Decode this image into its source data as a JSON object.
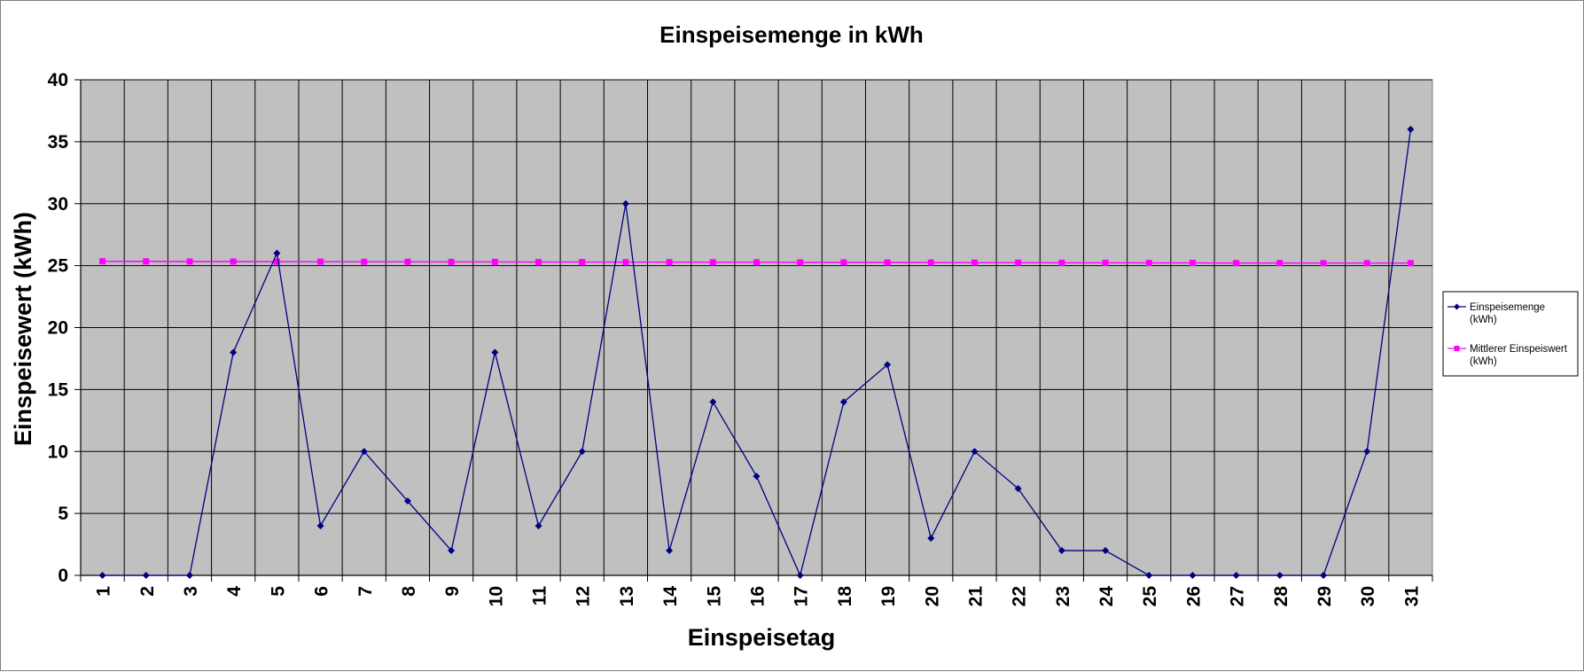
{
  "chart_data": {
    "type": "line",
    "title": "Einspeisemenge in kWh",
    "xlabel": "Einspeisetag",
    "ylabel": "Einspeisewert  (kWh)",
    "categories": [
      "1",
      "2",
      "3",
      "4",
      "5",
      "6",
      "7",
      "8",
      "9",
      "10",
      "11",
      "12",
      "13",
      "14",
      "15",
      "16",
      "17",
      "18",
      "19",
      "20",
      "21",
      "22",
      "23",
      "24",
      "25",
      "26",
      "27",
      "28",
      "29",
      "30",
      "31"
    ],
    "ylim": [
      0,
      40
    ],
    "yticks": [
      "0",
      "5",
      "10",
      "15",
      "20",
      "25",
      "30",
      "35",
      "40"
    ],
    "grid": true,
    "legend_position": "right",
    "series": [
      {
        "name": "Einspeisemenge (kWh)",
        "legend_lines": [
          "Einspeisemenge",
          "(kWh)"
        ],
        "color": "#000080",
        "marker": "diamond",
        "values": [
          0,
          0,
          0,
          18,
          26,
          4,
          10,
          6,
          2,
          18,
          4,
          10,
          30,
          2,
          14,
          8,
          0,
          14,
          17,
          3,
          10,
          7,
          2,
          2,
          0,
          0,
          0,
          0,
          0,
          10,
          36
        ]
      },
      {
        "name": "Mittlerer Einspeiswert (kWh)",
        "legend_lines": [
          "Mittlerer Einspeiswert",
          "(kWh)"
        ],
        "color": "#ff00ff",
        "marker": "square",
        "values": [
          25.35,
          25.34,
          25.33,
          25.33,
          25.32,
          25.32,
          25.31,
          25.31,
          25.3,
          25.3,
          25.29,
          25.29,
          25.28,
          25.28,
          25.27,
          25.27,
          25.26,
          25.26,
          25.25,
          25.25,
          25.24,
          25.24,
          25.23,
          25.23,
          25.22,
          25.22,
          25.21,
          25.21,
          25.2,
          25.2,
          25.2
        ]
      }
    ]
  }
}
